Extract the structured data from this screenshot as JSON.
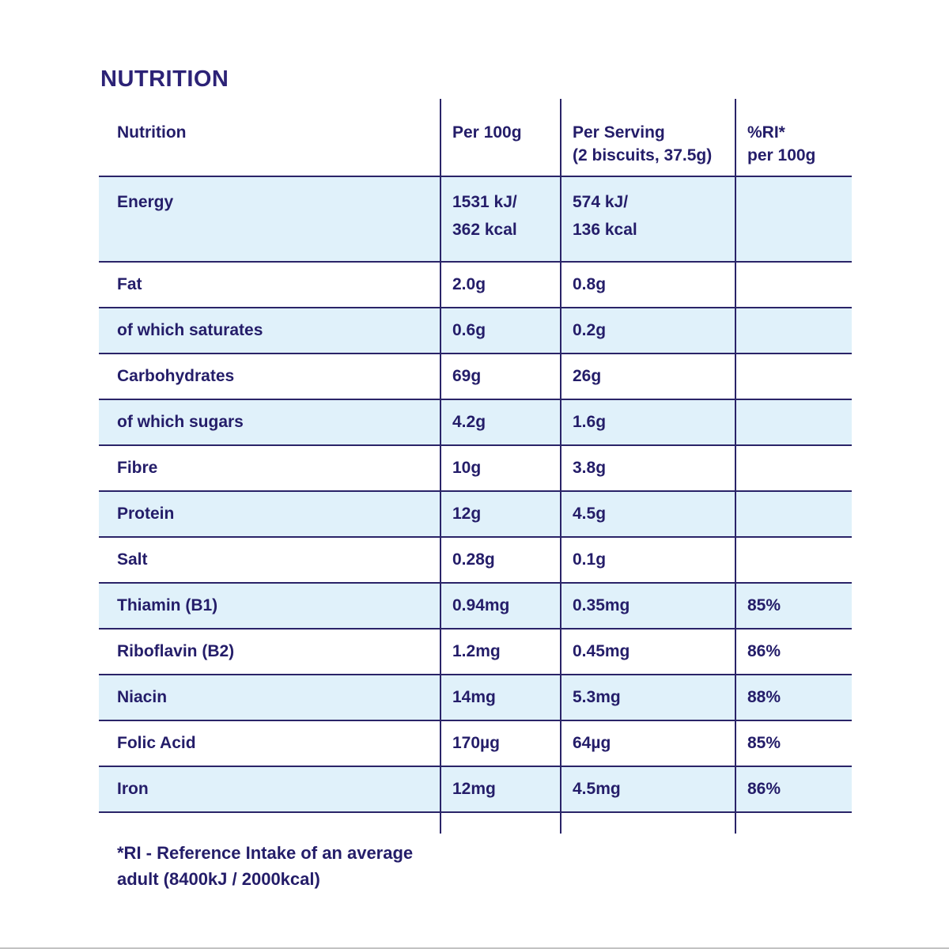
{
  "page": {
    "title": "NUTRITION"
  },
  "colors": {
    "text_navy": "#241d69",
    "line_navy": "#2a2468",
    "row_shade_blue": "#e0f1fa",
    "title_navy": "#2c2276"
  },
  "table": {
    "headers": [
      "Nutrition",
      "Per 100g",
      "Per Serving\n(2 biscuits, 37.5g)",
      "%RI*\nper 100g"
    ],
    "rows": [
      {
        "label": "Energy",
        "per100": "1531 kJ/\n362 kcal",
        "serving": "574 kJ/\n136 kcal",
        "ri": ""
      },
      {
        "label": "Fat",
        "per100": "2.0g",
        "serving": "0.8g",
        "ri": ""
      },
      {
        "label": "of which saturates",
        "per100": "0.6g",
        "serving": "0.2g",
        "ri": ""
      },
      {
        "label": "Carbohydrates",
        "per100": "69g",
        "serving": "26g",
        "ri": ""
      },
      {
        "label": "of which sugars",
        "per100": "4.2g",
        "serving": "1.6g",
        "ri": ""
      },
      {
        "label": "Fibre",
        "per100": "10g",
        "serving": "3.8g",
        "ri": ""
      },
      {
        "label": "Protein",
        "per100": "12g",
        "serving": "4.5g",
        "ri": ""
      },
      {
        "label": "Salt",
        "per100": "0.28g",
        "serving": "0.1g",
        "ri": ""
      },
      {
        "label": "Thiamin (B1)",
        "per100": "0.94mg",
        "serving": "0.35mg",
        "ri": "85%"
      },
      {
        "label": "Riboflavin (B2)",
        "per100": "1.2mg",
        "serving": "0.45mg",
        "ri": "86%"
      },
      {
        "label": "Niacin",
        "per100": "14mg",
        "serving": "5.3mg",
        "ri": "88%"
      },
      {
        "label": "Folic Acid",
        "per100": "170µg",
        "serving": "64µg",
        "ri": "85%"
      },
      {
        "label": "Iron",
        "per100": "12mg",
        "serving": "4.5mg",
        "ri": "86%"
      }
    ]
  },
  "footnote": {
    "line1": "*RI - Reference Intake of an average",
    "line2": "adult (8400kJ / 2000kcal)"
  }
}
